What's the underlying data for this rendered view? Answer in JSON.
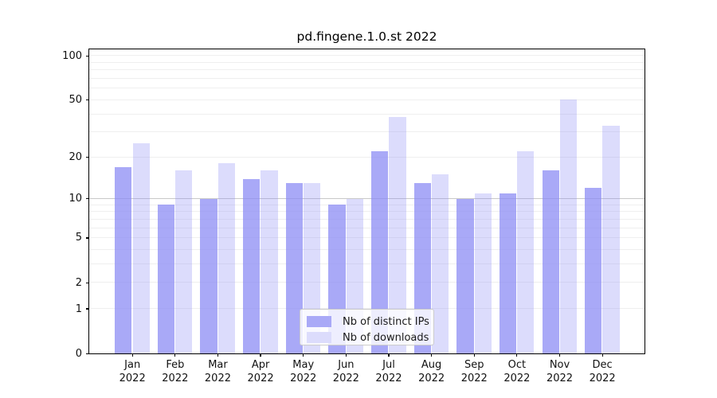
{
  "chart_data": {
    "type": "bar",
    "title": "pd.fingene.1.0.st 2022",
    "categories": [
      "Jan",
      "Feb",
      "Mar",
      "Apr",
      "May",
      "Jun",
      "Jul",
      "Aug",
      "Sep",
      "Oct",
      "Nov",
      "Dec"
    ],
    "category_year": "2022",
    "series": [
      {
        "name": "Nb of distinct IPs",
        "color_rgb": "140,140,244",
        "alpha": 0.75,
        "values": [
          17,
          9,
          10,
          14,
          13,
          9,
          22,
          13,
          10,
          11,
          16,
          12
        ]
      },
      {
        "name": "Nb of downloads",
        "color_rgb": "140,140,244",
        "alpha": 0.3,
        "values": [
          25,
          16,
          18,
          16,
          13,
          10,
          38,
          15,
          11,
          22,
          50,
          33
        ]
      }
    ],
    "swatch_colors": [
      "#a9a9f7",
      "#dcdcfc"
    ],
    "y_scale": "log1p",
    "ylim": [
      0,
      110
    ],
    "y_tick_labels": [
      100,
      50,
      20,
      10,
      5,
      2,
      1,
      0
    ],
    "y_gridlines_minor": [
      1,
      2,
      3,
      4,
      5,
      6,
      7,
      8,
      9,
      20,
      30,
      40,
      50,
      60,
      70,
      80,
      90,
      100
    ],
    "y_gridlines_major": [
      10
    ],
    "grid_color_minor": "#efefef",
    "grid_color_major": "#c8c8c8",
    "axis_color": "#000000",
    "text_color": "#111111",
    "legend_position": "lower-center"
  }
}
